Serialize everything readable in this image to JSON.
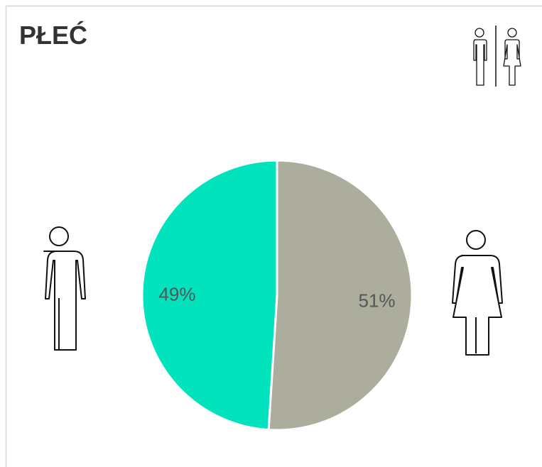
{
  "chart_data": {
    "type": "pie",
    "title": "PŁEĆ",
    "values": [
      51,
      49
    ],
    "value_labels": [
      "51%",
      "49%"
    ],
    "colors": [
      "#adad9e",
      "#00e3bd"
    ]
  }
}
